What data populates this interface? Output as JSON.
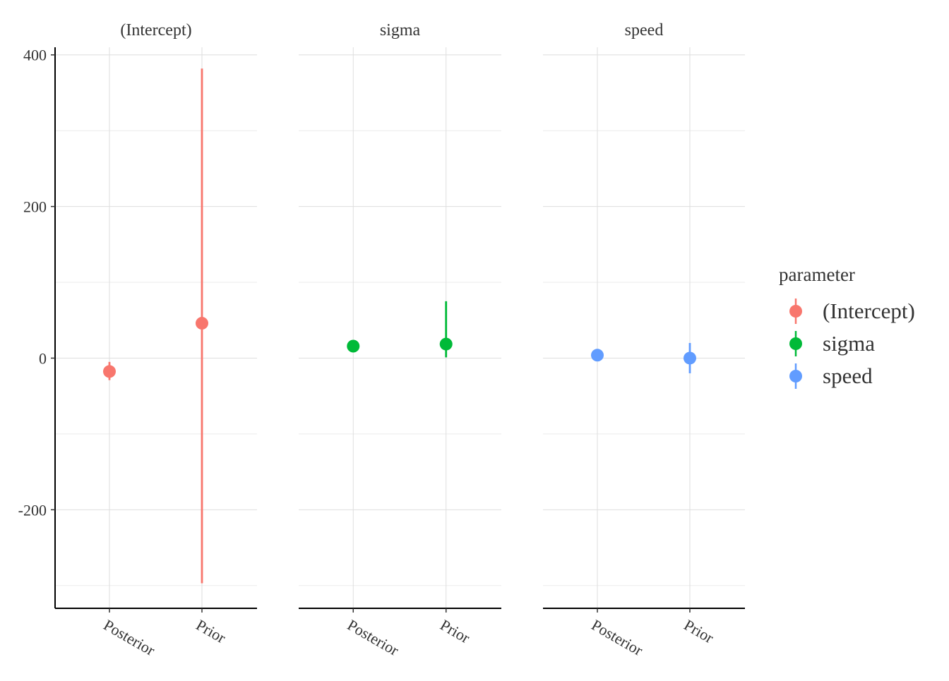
{
  "chart_data": {
    "type": "scatter",
    "subtype": "pointrange-faceted",
    "x_categories": [
      "Posterior",
      "Prior"
    ],
    "ylim": [
      -330,
      410
    ],
    "yticks": [
      -200,
      0,
      200,
      400
    ],
    "ytick_labels": [
      "-200",
      "0",
      "200",
      "400"
    ],
    "grid": true,
    "legend": {
      "title": "parameter",
      "placement": "right",
      "entries": [
        "(Intercept)",
        "sigma",
        "speed"
      ]
    },
    "colors": {
      "(Intercept)": "#F8766D",
      "sigma": "#00BA38",
      "speed": "#619CFF"
    },
    "facets": [
      {
        "title": "(Intercept)",
        "parameter": "(Intercept)",
        "points": [
          {
            "x": "Posterior",
            "y": -17.6,
            "lower": -29,
            "upper": -5
          },
          {
            "x": "Prior",
            "y": 46,
            "lower": -297,
            "upper": 382
          }
        ]
      },
      {
        "title": "sigma",
        "parameter": "sigma",
        "points": [
          {
            "x": "Posterior",
            "y": 15.8,
            "lower": 13,
            "upper": 19
          },
          {
            "x": "Prior",
            "y": 18.5,
            "lower": 1,
            "upper": 75
          }
        ]
      },
      {
        "title": "speed",
        "parameter": "speed",
        "points": [
          {
            "x": "Posterior",
            "y": 3.9,
            "lower": 3.1,
            "upper": 4.7
          },
          {
            "x": "Prior",
            "y": 0,
            "lower": -20,
            "upper": 20
          }
        ]
      }
    ]
  }
}
